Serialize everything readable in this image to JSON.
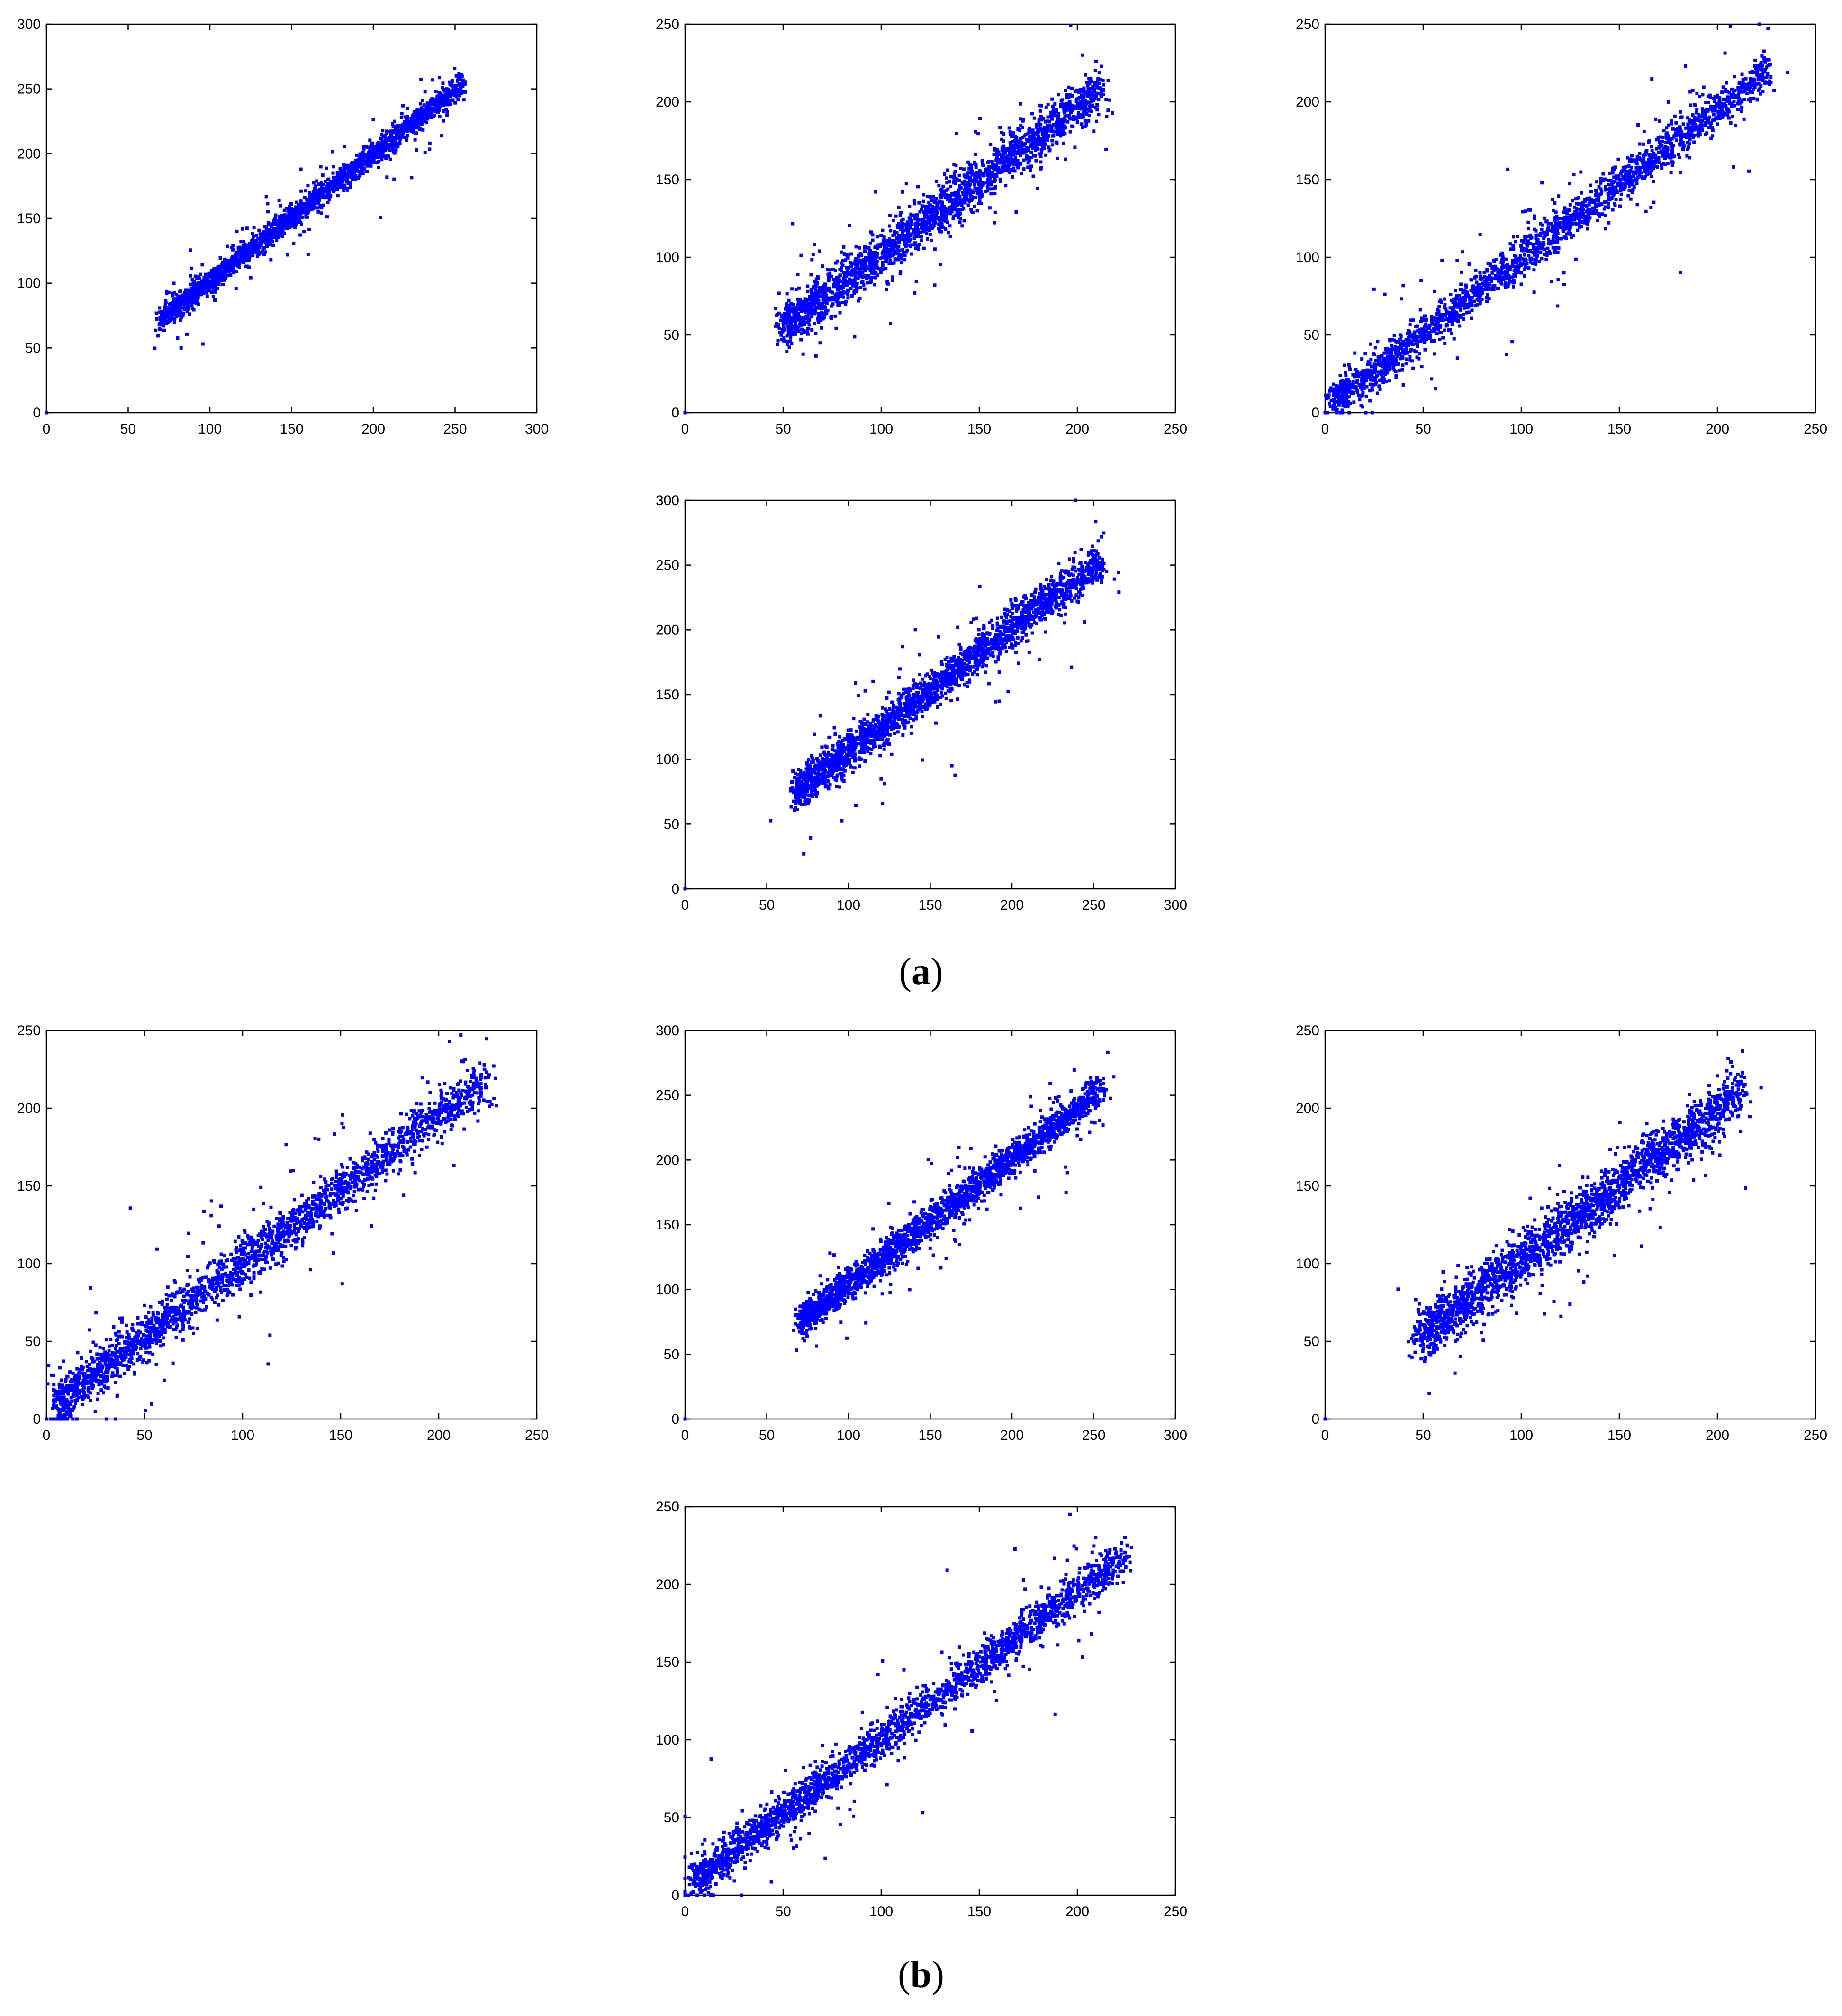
{
  "figure": {
    "caption_a": {
      "open": "(",
      "letter": "a",
      "close": ")"
    },
    "caption_b": {
      "open": "(",
      "letter": "b",
      "close": ")"
    },
    "marker_color": "#0000ff"
  },
  "chart_data": [
    {
      "type": "scatter",
      "group": "a",
      "xlim": [
        0,
        300
      ],
      "ylim": [
        0,
        300
      ],
      "xticks": [
        0,
        50,
        100,
        150,
        200,
        250,
        300
      ],
      "yticks": [
        0,
        50,
        100,
        150,
        200,
        250,
        300
      ],
      "trend": {
        "x": [
          70,
          255
        ],
        "y": [
          72,
          254
        ]
      },
      "noise": 4.5,
      "outlier_spread": 16,
      "n_points": 2200,
      "grid": false,
      "legend": "none"
    },
    {
      "type": "scatter",
      "group": "a",
      "xlim": [
        0,
        250
      ],
      "ylim": [
        0,
        250
      ],
      "xticks": [
        0,
        50,
        100,
        150,
        200,
        250
      ],
      "yticks": [
        0,
        50,
        100,
        150,
        200,
        250
      ],
      "trend": {
        "x": [
          50,
          212
        ],
        "y": [
          55,
          208
        ]
      },
      "noise": 7,
      "outlier_spread": 20,
      "n_points": 2200,
      "grid": false,
      "legend": "none"
    },
    {
      "type": "scatter",
      "group": "a",
      "xlim": [
        0,
        250
      ],
      "ylim": [
        0,
        250
      ],
      "xticks": [
        0,
        50,
        100,
        150,
        200,
        250
      ],
      "yticks": [
        0,
        50,
        100,
        150,
        200,
        250
      ],
      "trend": {
        "x": [
          5,
          226
        ],
        "y": [
          8,
          220
        ]
      },
      "noise": 6,
      "outlier_spread": 22,
      "n_points": 2200,
      "grid": false,
      "legend": "none"
    },
    {
      "type": "scatter",
      "group": "a",
      "xlim": [
        0,
        300
      ],
      "ylim": [
        0,
        300
      ],
      "xticks": [
        0,
        50,
        100,
        150,
        200,
        250,
        300
      ],
      "yticks": [
        0,
        50,
        100,
        150,
        200,
        250,
        300
      ],
      "trend": {
        "x": [
          68,
          255
        ],
        "y": [
          75,
          254
        ]
      },
      "noise": 7,
      "outlier_spread": 26,
      "n_points": 2200,
      "grid": false,
      "legend": "none"
    },
    {
      "type": "scatter",
      "group": "b",
      "xlim": [
        0,
        250
      ],
      "ylim": [
        0,
        250
      ],
      "xticks": [
        0,
        50,
        100,
        150,
        200,
        250
      ],
      "yticks": [
        0,
        50,
        100,
        150,
        200,
        250
      ],
      "trend": {
        "x": [
          5,
          224
        ],
        "y": [
          10,
          218
        ]
      },
      "noise": 7,
      "outlier_spread": 30,
      "n_points": 2200,
      "grid": false,
      "legend": "none"
    },
    {
      "type": "scatter",
      "group": "b",
      "xlim": [
        0,
        300
      ],
      "ylim": [
        0,
        300
      ],
      "xticks": [
        0,
        50,
        100,
        150,
        200,
        250,
        300
      ],
      "yticks": [
        0,
        50,
        100,
        150,
        200,
        250,
        300
      ],
      "trend": {
        "x": [
          70,
          255
        ],
        "y": [
          75,
          254
        ]
      },
      "noise": 6,
      "outlier_spread": 22,
      "n_points": 2200,
      "grid": false,
      "legend": "none"
    },
    {
      "type": "scatter",
      "group": "b",
      "xlim": [
        0,
        250
      ],
      "ylim": [
        0,
        250
      ],
      "xticks": [
        0,
        50,
        100,
        150,
        200,
        250
      ],
      "yticks": [
        0,
        50,
        100,
        150,
        200,
        250
      ],
      "trend": {
        "x": [
          48,
          212
        ],
        "y": [
          52,
          210
        ]
      },
      "noise": 8,
      "outlier_spread": 22,
      "n_points": 2200,
      "grid": false,
      "legend": "none"
    },
    {
      "type": "scatter",
      "group": "b",
      "xlim": [
        0,
        250
      ],
      "ylim": [
        0,
        250
      ],
      "xticks": [
        0,
        50,
        100,
        150,
        200,
        250
      ],
      "yticks": [
        0,
        50,
        100,
        150,
        200,
        250
      ],
      "trend": {
        "x": [
          5,
          224
        ],
        "y": [
          10,
          218
        ]
      },
      "noise": 6,
      "outlier_spread": 28,
      "n_points": 2200,
      "grid": false,
      "legend": "none"
    }
  ]
}
